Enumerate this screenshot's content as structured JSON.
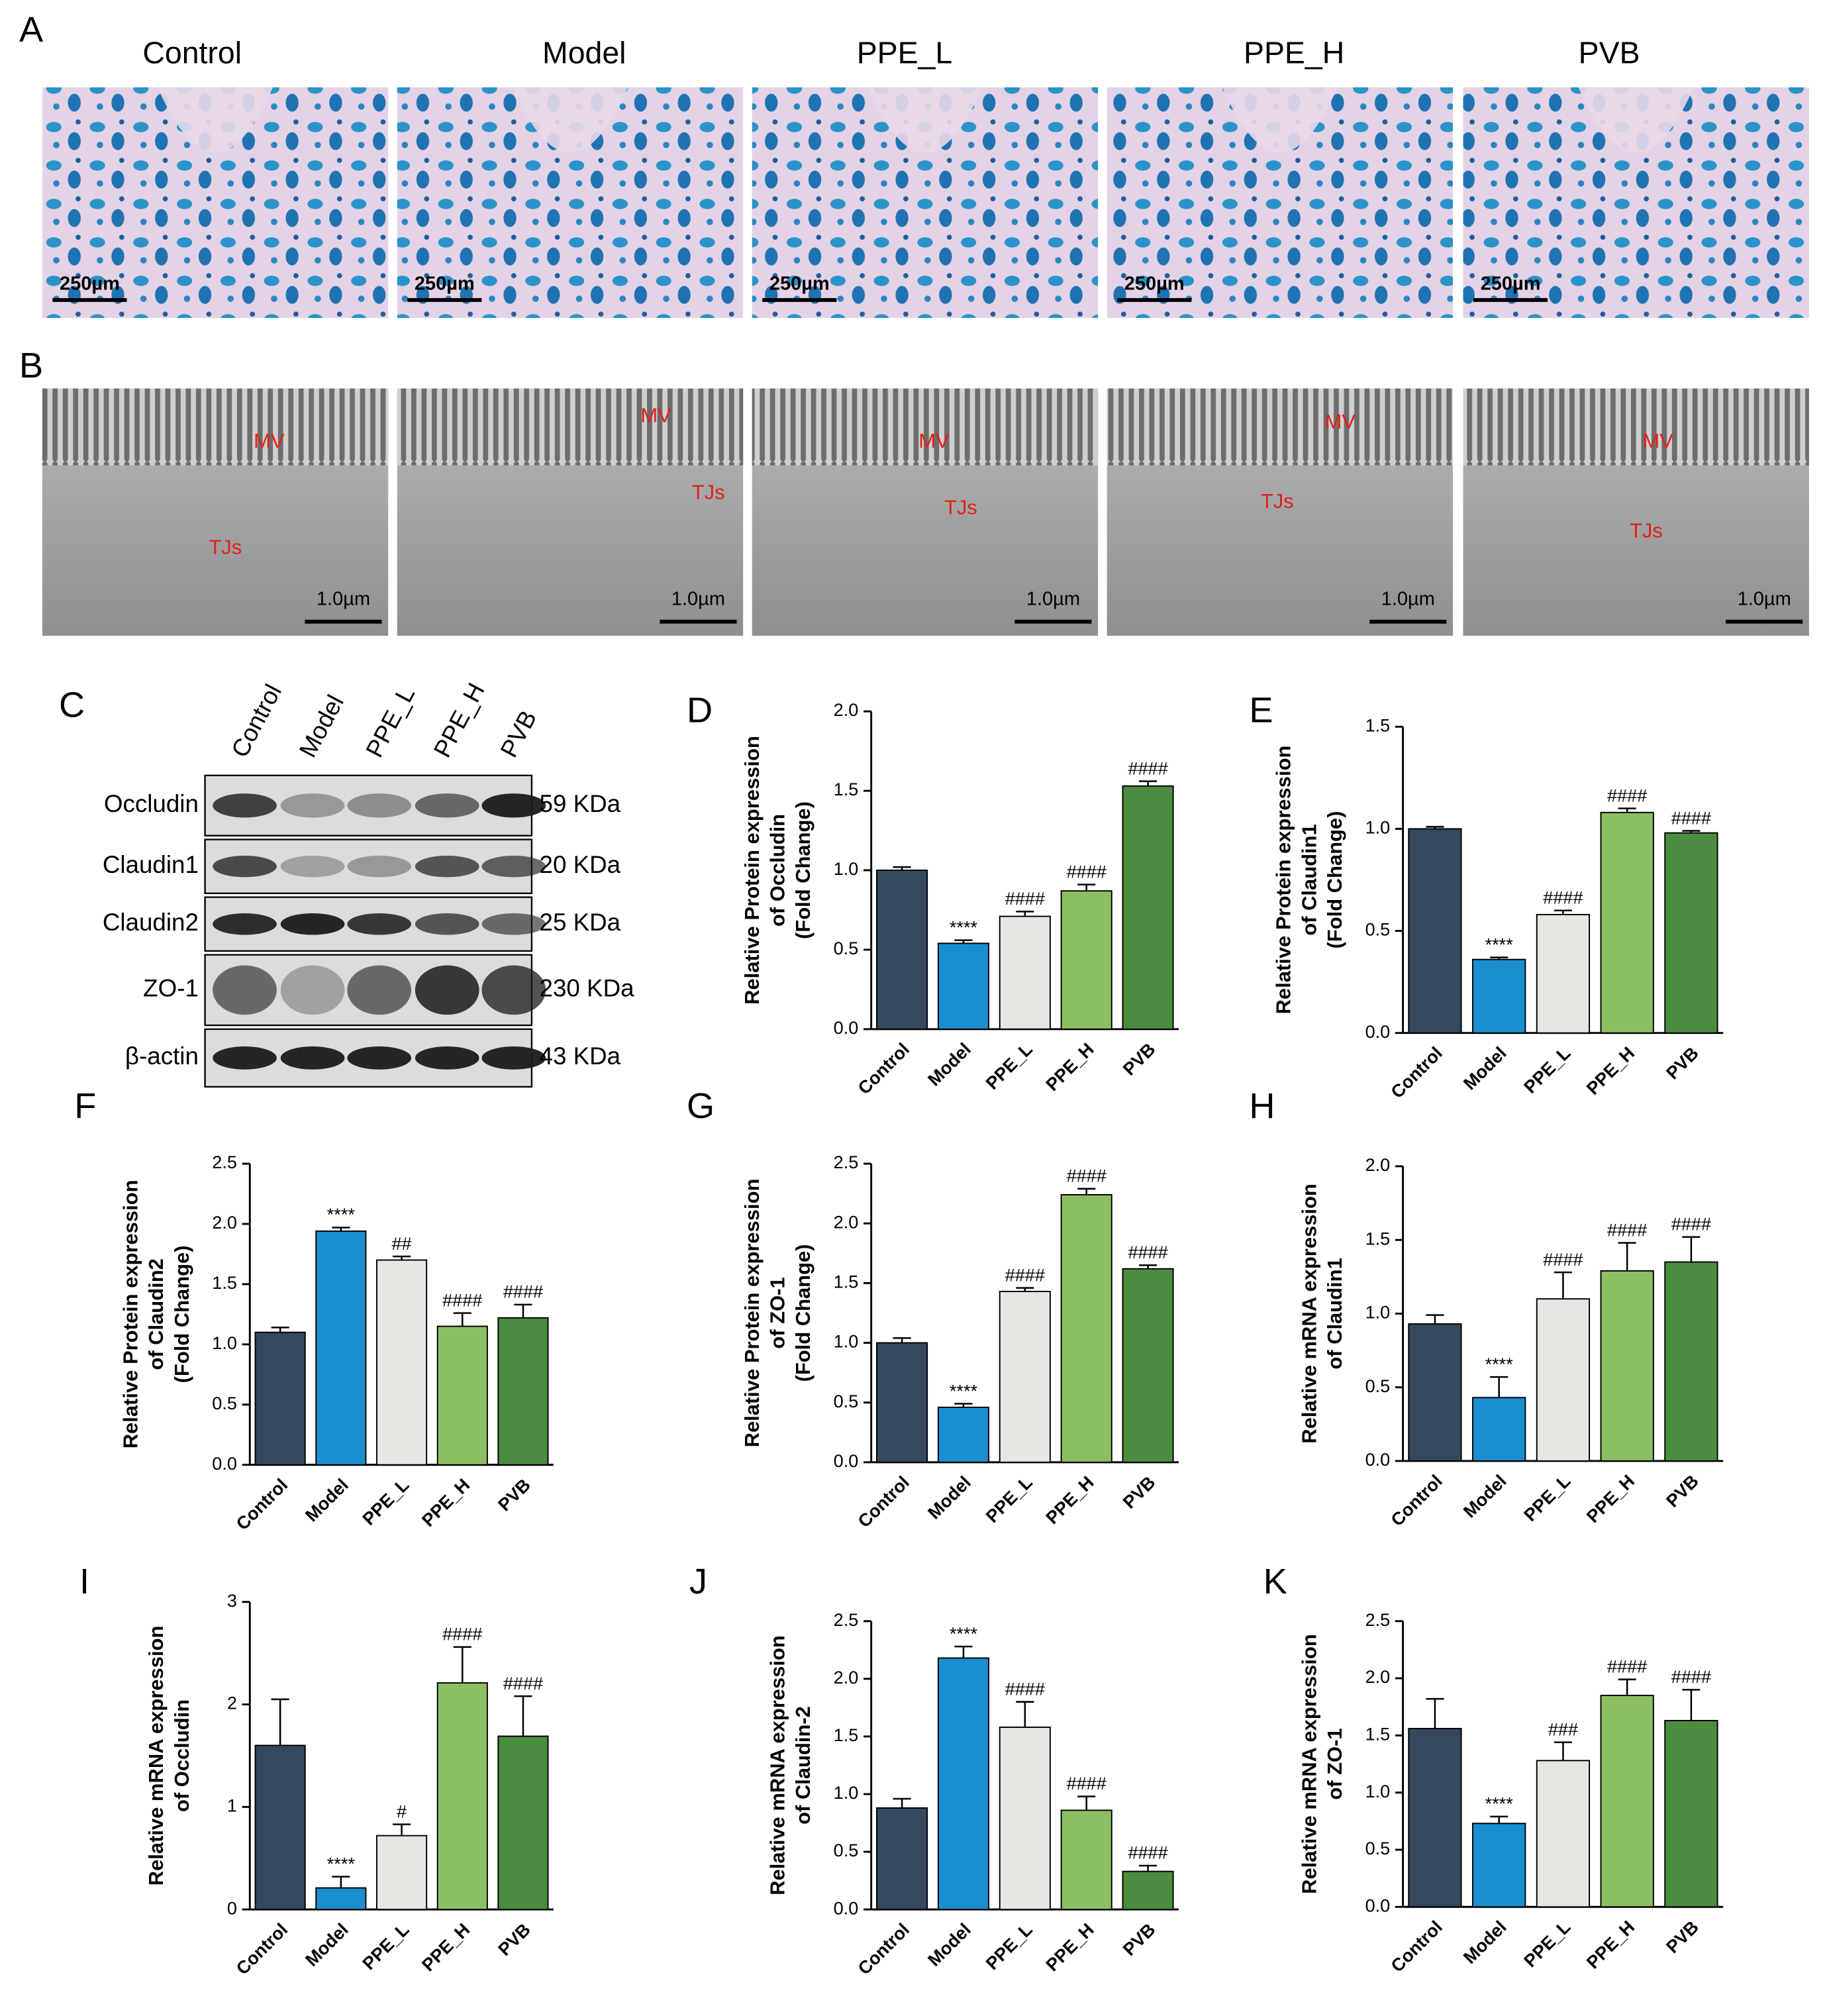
{
  "figure": {
    "panel_A": {
      "label": "A",
      "groups": [
        "Control",
        "Model",
        "PPE_L",
        "PPE_H",
        "PVB"
      ],
      "scale_bar": "250µm"
    },
    "panel_B": {
      "label": "B",
      "scale_bar": "1.0µm",
      "mv": "MV",
      "tjs": "TJs"
    },
    "panel_C": {
      "label": "C",
      "lanes": [
        "Control",
        "Model",
        "PPE_L",
        "PPE_H",
        "PVB"
      ],
      "rows": [
        {
          "name": "Occludin",
          "size": "59 KDa"
        },
        {
          "name": "Claudin1",
          "size": "20 KDa"
        },
        {
          "name": "Claudin2",
          "size": "25 KDa"
        },
        {
          "name": "ZO-1",
          "size": "230 KDa"
        },
        {
          "name": "β-actin",
          "size": "43 KDa"
        }
      ]
    }
  },
  "chart_data": [
    {
      "type": "bar",
      "label": "D",
      "ylabel": [
        "Relative Protein expression",
        "of Occludin",
        "(Fold Change)"
      ],
      "categories": [
        "Control",
        "Model",
        "PPE_L",
        "PPE_H",
        "PVB"
      ],
      "colors": [
        "#34495e",
        "#1a8fcf",
        "#e6e6e2",
        "#8cbf63",
        "#4c8c40"
      ],
      "values": [
        1.0,
        0.54,
        0.71,
        0.87,
        1.53
      ],
      "errors": [
        0.02,
        0.02,
        0.03,
        0.04,
        0.03
      ],
      "annotations": [
        null,
        "****",
        "####",
        "####",
        "####"
      ],
      "ylim": [
        0,
        2
      ],
      "yticks": [
        {
          "value": 0,
          "label": "0.0"
        },
        0.5,
        {
          "value": 1,
          "label": "1.0"
        },
        1.5,
        {
          "value": 2,
          "label": "2.0"
        }
      ]
    },
    {
      "type": "bar",
      "label": "E",
      "ylabel": [
        "Relative Protein expression",
        "of Claudin1",
        "(Fold Change)"
      ],
      "categories": [
        "Control",
        "Model",
        "PPE_L",
        "PPE_H",
        "PVB"
      ],
      "colors": [
        "#34495e",
        "#1a8fcf",
        "#e6e6e2",
        "#8cbf63",
        "#4c8c40"
      ],
      "values": [
        1.0,
        0.36,
        0.58,
        1.08,
        0.98
      ],
      "errors": [
        0.01,
        0.01,
        0.02,
        0.02,
        0.01
      ],
      "annotations": [
        null,
        "****",
        "####",
        "####",
        "####"
      ],
      "ylim": [
        0,
        1.5
      ],
      "yticks": [
        {
          "value": 0,
          "label": "0.0"
        },
        0.5,
        {
          "value": 1,
          "label": "1.0"
        },
        1.5
      ]
    },
    {
      "type": "bar",
      "label": "F",
      "ylabel": [
        "Relative Protein expression",
        "of Claudin2",
        "(Fold Change)"
      ],
      "categories": [
        "Control",
        "Model",
        "PPE_L",
        "PPE_H",
        "PVB"
      ],
      "colors": [
        "#34495e",
        "#1a8fcf",
        "#e6e6e2",
        "#8cbf63",
        "#4c8c40"
      ],
      "values": [
        1.1,
        1.94,
        1.7,
        1.15,
        1.22
      ],
      "errors": [
        0.04,
        0.03,
        0.03,
        0.11,
        0.11
      ],
      "annotations": [
        null,
        "****",
        "##",
        "####",
        "####"
      ],
      "ylim": [
        0,
        2.5
      ],
      "yticks": [
        {
          "value": 0,
          "label": "0.0"
        },
        0.5,
        {
          "value": 1,
          "label": "1.0"
        },
        1.5,
        {
          "value": 2,
          "label": "2.0"
        },
        2.5
      ]
    },
    {
      "type": "bar",
      "label": "G",
      "ylabel": [
        "Relative Protein expression",
        "of ZO-1",
        "(Fold Change)"
      ],
      "categories": [
        "Control",
        "Model",
        "PPE_L",
        "PPE_H",
        "PVB"
      ],
      "colors": [
        "#34495e",
        "#1a8fcf",
        "#e6e6e2",
        "#8cbf63",
        "#4c8c40"
      ],
      "values": [
        1.0,
        0.46,
        1.43,
        2.24,
        1.62
      ],
      "errors": [
        0.04,
        0.03,
        0.03,
        0.05,
        0.03
      ],
      "annotations": [
        null,
        "****",
        "####",
        "####",
        "####"
      ],
      "ylim": [
        0,
        2.5
      ],
      "yticks": [
        {
          "value": 0,
          "label": "0.0"
        },
        0.5,
        {
          "value": 1,
          "label": "1.0"
        },
        1.5,
        {
          "value": 2,
          "label": "2.0"
        },
        2.5
      ]
    },
    {
      "type": "bar",
      "label": "H",
      "ylabel": [
        "Relative mRNA expression",
        "of Claudin1"
      ],
      "categories": [
        "Control",
        "Model",
        "PPE_L",
        "PPE_H",
        "PVB"
      ],
      "colors": [
        "#34495e",
        "#1a8fcf",
        "#e6e6e2",
        "#8cbf63",
        "#4c8c40"
      ],
      "values": [
        0.93,
        0.43,
        1.1,
        1.29,
        1.35
      ],
      "errors": [
        0.06,
        0.14,
        0.18,
        0.19,
        0.17
      ],
      "annotations": [
        null,
        "****",
        "####",
        "####",
        "####"
      ],
      "ylim": [
        0,
        2
      ],
      "yticks": [
        {
          "value": 0,
          "label": "0.0"
        },
        0.5,
        {
          "value": 1,
          "label": "1.0"
        },
        1.5,
        {
          "value": 2,
          "label": "2.0"
        }
      ]
    },
    {
      "type": "bar",
      "label": "I",
      "ylabel": [
        "Relative mRNA expression",
        "of Occludin"
      ],
      "categories": [
        "Control",
        "Model",
        "PPE_L",
        "PPE_H",
        "PVB"
      ],
      "colors": [
        "#34495e",
        "#1a8fcf",
        "#e6e6e2",
        "#8cbf63",
        "#4c8c40"
      ],
      "values": [
        1.6,
        0.21,
        0.72,
        2.21,
        1.69
      ],
      "errors": [
        0.45,
        0.11,
        0.11,
        0.35,
        0.39
      ],
      "annotations": [
        null,
        "****",
        "#",
        "####",
        "####"
      ],
      "ylim": [
        0,
        3
      ],
      "yticks": [
        0,
        1,
        2,
        3
      ]
    },
    {
      "type": "bar",
      "label": "J",
      "ylabel": [
        "Relative mRNA expression",
        "of Claudin-2"
      ],
      "categories": [
        "Control",
        "Model",
        "PPE_L",
        "PPE_H",
        "PVB"
      ],
      "colors": [
        "#34495e",
        "#1a8fcf",
        "#e6e6e2",
        "#8cbf63",
        "#4c8c40"
      ],
      "values": [
        0.88,
        2.18,
        1.58,
        0.86,
        0.33
      ],
      "errors": [
        0.08,
        0.1,
        0.22,
        0.12,
        0.05
      ],
      "annotations": [
        null,
        "****",
        "####",
        "####",
        "####"
      ],
      "ylim": [
        0,
        2.5
      ],
      "yticks": [
        {
          "value": 0,
          "label": "0.0"
        },
        0.5,
        {
          "value": 1,
          "label": "1.0"
        },
        1.5,
        {
          "value": 2,
          "label": "2.0"
        },
        2.5
      ]
    },
    {
      "type": "bar",
      "label": "K",
      "ylabel": [
        "Relative mRNA expression",
        "of ZO-1"
      ],
      "categories": [
        "Control",
        "Model",
        "PPE_L",
        "PPE_H",
        "PVB"
      ],
      "colors": [
        "#34495e",
        "#1a8fcf",
        "#e6e6e2",
        "#8cbf63",
        "#4c8c40"
      ],
      "values": [
        1.56,
        0.73,
        1.28,
        1.85,
        1.63
      ],
      "errors": [
        0.26,
        0.06,
        0.16,
        0.14,
        0.27
      ],
      "annotations": [
        null,
        "****",
        "###",
        "####",
        "####"
      ],
      "ylim": [
        0,
        2.5
      ],
      "yticks": [
        {
          "value": 0,
          "label": "0.0"
        },
        0.5,
        {
          "value": 1,
          "label": "1.0"
        },
        1.5,
        {
          "value": 2,
          "label": "2.0"
        },
        2.5
      ]
    }
  ]
}
